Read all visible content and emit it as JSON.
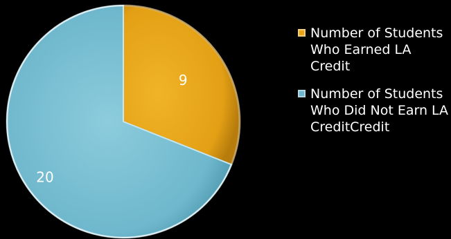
{
  "chart_data": {
    "type": "pie",
    "categories": [
      "Number of Students Who Earned LA Credit",
      "Number of Students Who Did Not Earn LA CreditCredit"
    ],
    "values": [
      9,
      20
    ],
    "data_labels": [
      "9",
      "20"
    ],
    "colors": [
      "#E8A317",
      "#6FB7CC"
    ],
    "legend_position": "right"
  },
  "legend": {
    "items": [
      {
        "label": "Number of Students Who Earned LA Credit",
        "color": "#E8A317"
      },
      {
        "label": " Number of Students Who Did Not Earn LA CreditCredit",
        "color": "#6FB7CC"
      }
    ]
  }
}
